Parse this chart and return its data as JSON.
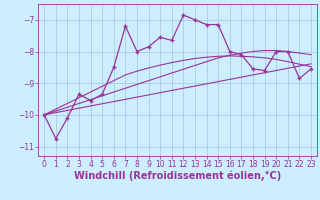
{
  "x": [
    0,
    1,
    2,
    3,
    4,
    5,
    6,
    7,
    8,
    9,
    10,
    11,
    12,
    13,
    14,
    15,
    16,
    17,
    18,
    19,
    20,
    21,
    22,
    23
  ],
  "y_main": [
    -10.0,
    -10.75,
    -10.1,
    -9.35,
    -9.55,
    -9.35,
    -8.5,
    -7.2,
    -8.0,
    -7.85,
    -7.55,
    -7.65,
    -6.85,
    -7.0,
    -7.15,
    -7.15,
    -8.0,
    -8.1,
    -8.55,
    -8.6,
    -8.0,
    -8.0,
    -8.85,
    -8.55
  ],
  "y_reg1": [
    -10.0,
    -9.93,
    -9.86,
    -9.79,
    -9.72,
    -9.65,
    -9.58,
    -9.51,
    -9.44,
    -9.37,
    -9.3,
    -9.23,
    -9.16,
    -9.09,
    -9.02,
    -8.95,
    -8.88,
    -8.81,
    -8.74,
    -8.67,
    -8.6,
    -8.53,
    -8.46,
    -8.39
  ],
  "y_reg2": [
    -10.0,
    -9.88,
    -9.76,
    -9.64,
    -9.52,
    -9.4,
    -9.28,
    -9.16,
    -9.04,
    -8.92,
    -8.8,
    -8.68,
    -8.56,
    -8.44,
    -8.32,
    -8.2,
    -8.12,
    -8.05,
    -8.0,
    -7.97,
    -7.97,
    -8.0,
    -8.05,
    -8.1
  ],
  "y_reg3": [
    -10.0,
    -9.82,
    -9.64,
    -9.46,
    -9.28,
    -9.1,
    -8.92,
    -8.74,
    -8.62,
    -8.52,
    -8.43,
    -8.35,
    -8.28,
    -8.22,
    -8.18,
    -8.15,
    -8.14,
    -8.15,
    -8.17,
    -8.2,
    -8.25,
    -8.32,
    -8.4,
    -8.48
  ],
  "line_color": "#993399",
  "bg_color": "#cceeff",
  "grid_color": "#aaccdd",
  "xlabel": "Windchill (Refroidissement éolien,°C)",
  "ylim": [
    -11.3,
    -6.5
  ],
  "xlim": [
    -0.5,
    23.5
  ],
  "yticks": [
    -11,
    -10,
    -9,
    -8,
    -7
  ],
  "xticks": [
    0,
    1,
    2,
    3,
    4,
    5,
    6,
    7,
    8,
    9,
    10,
    11,
    12,
    13,
    14,
    15,
    16,
    17,
    18,
    19,
    20,
    21,
    22,
    23
  ],
  "tick_fontsize": 5.5,
  "xlabel_fontsize": 7.0
}
